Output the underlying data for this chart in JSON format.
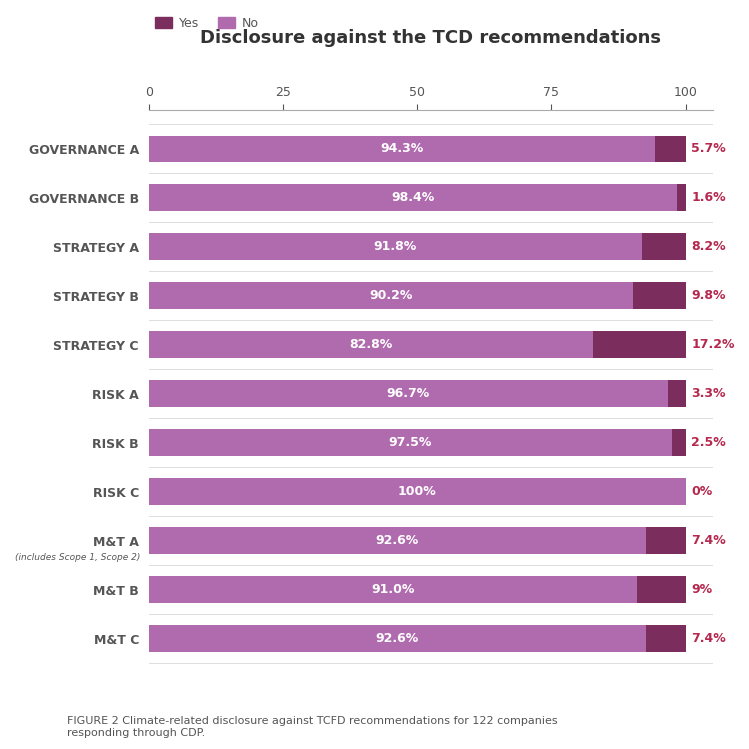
{
  "title": "Disclosure against the TCD recommendations",
  "categories": [
    "GOVERNANCE A",
    "GOVERNANCE B",
    "STRATEGY A",
    "STRATEGY B",
    "STRATEGY C",
    "RISK A",
    "RISK B",
    "RISK C",
    "M&T A",
    "M&T B",
    "M&T C"
  ],
  "no_values": [
    94.3,
    98.4,
    91.8,
    90.2,
    82.8,
    96.7,
    97.5,
    100.0,
    92.6,
    91.0,
    92.6
  ],
  "yes_values": [
    5.7,
    1.6,
    8.2,
    9.8,
    17.2,
    3.3,
    2.5,
    0.0,
    7.4,
    9.0,
    7.4
  ],
  "no_labels": [
    "94.3%",
    "98.4%",
    "91.8%",
    "90.2%",
    "82.8%",
    "96.7%",
    "97.5%",
    "100%",
    "92.6%",
    "91.0%",
    "92.6%"
  ],
  "yes_labels": [
    "5.7%",
    "1.6%",
    "8.2%",
    "9.8%",
    "17.2%",
    "3.3%",
    "2.5%",
    "0%",
    "7.4%",
    "9%",
    "7.4%"
  ],
  "yes_color": "#7b2d5e",
  "no_color": "#b06aae",
  "bar_text_color": "#ffffff",
  "outside_label_color": "#b5294e",
  "background_color": "#ffffff",
  "special_label": "(includes Scope 1, Scope 2)",
  "special_label_idx": 8,
  "caption": "FIGURE 2 Climate-related disclosure against TCFD recommendations for 122 companies\nresponding through CDP.",
  "xlim": [
    0,
    100
  ],
  "xticks": [
    0,
    25,
    50,
    75,
    100
  ],
  "legend_yes": "Yes",
  "legend_no": "No",
  "title_fontsize": 13,
  "label_fontsize": 9,
  "tick_fontsize": 9,
  "caption_fontsize": 8,
  "bar_height": 0.55
}
